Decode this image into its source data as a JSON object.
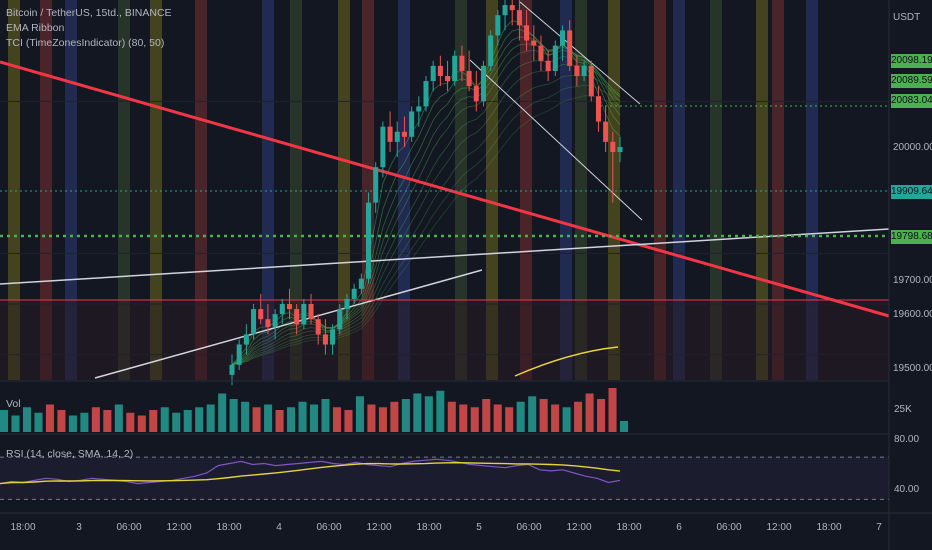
{
  "legend": {
    "symbol": "Bitcoin / TetherUS, 15td., BINANCE",
    "ema": "EMA Ribbon",
    "tci": "TCI (TimeZonesIndicator) (80, 50)"
  },
  "currency": "USDT",
  "volume_label": "Vol",
  "volume_max_label": "25K",
  "rsi_label": "RSI (14, close, SMA, 14, 2)",
  "price_tags": [
    {
      "value": "20098.19",
      "color": "#4caf50"
    },
    {
      "value": "20089.59",
      "color": "#4caf50"
    },
    {
      "value": "20083.04",
      "color": "#4caf50"
    },
    {
      "value": "19909.64",
      "color": "#26a69a"
    },
    {
      "value": "19798.68",
      "color": "#4caf50"
    }
  ],
  "price_axis": [
    "20000.00",
    "19700.00",
    "19600.00",
    "19500.00"
  ],
  "rsi_axis": [
    "80.00",
    "40.00"
  ],
  "time_axis": [
    "18:00",
    "3",
    "06:00",
    "12:00",
    "18:00",
    "4",
    "06:00",
    "12:00",
    "18:00",
    "5",
    "06:00",
    "12:00",
    "18:00",
    "6",
    "06:00",
    "12:00",
    "18:00",
    "7"
  ],
  "colors": {
    "up": "#26a69a",
    "down": "#ef5350",
    "trendline": "#f23645",
    "support": "#f23645",
    "ribbon": "#4caf50",
    "rsi": "#7e57c2",
    "rsi_ma": "#e6d33a"
  },
  "chart_data": {
    "type": "candlestick",
    "series_name": "Bitcoin / TetherUS",
    "price_range": [
      19450,
      20200
    ],
    "candles_note": "approximate 15-minute OHLC candles read from the visible chart",
    "candles": [
      [
        19460,
        19500,
        19440,
        19480
      ],
      [
        19480,
        19530,
        19470,
        19520
      ],
      [
        19520,
        19560,
        19500,
        19540
      ],
      [
        19540,
        19600,
        19530,
        19590
      ],
      [
        19590,
        19620,
        19560,
        19570
      ],
      [
        19570,
        19600,
        19540,
        19555
      ],
      [
        19555,
        19590,
        19530,
        19580
      ],
      [
        19580,
        19610,
        19560,
        19600
      ],
      [
        19600,
        19630,
        19570,
        19590
      ],
      [
        19590,
        19600,
        19540,
        19560
      ],
      [
        19560,
        19610,
        19550,
        19600
      ],
      [
        19600,
        19620,
        19560,
        19570
      ],
      [
        19570,
        19580,
        19520,
        19540
      ],
      [
        19540,
        19570,
        19500,
        19520
      ],
      [
        19520,
        19560,
        19500,
        19550
      ],
      [
        19550,
        19600,
        19540,
        19590
      ],
      [
        19590,
        19620,
        19570,
        19610
      ],
      [
        19610,
        19640,
        19600,
        19630
      ],
      [
        19630,
        19660,
        19620,
        19650
      ],
      [
        19650,
        19820,
        19640,
        19800
      ],
      [
        19800,
        19880,
        19780,
        19870
      ],
      [
        19870,
        19960,
        19850,
        19950
      ],
      [
        19950,
        19980,
        19900,
        19920
      ],
      [
        19920,
        19960,
        19890,
        19940
      ],
      [
        19940,
        19970,
        19910,
        19930
      ],
      [
        19930,
        19990,
        19920,
        19980
      ],
      [
        19980,
        20010,
        19950,
        19990
      ],
      [
        19990,
        20050,
        19980,
        20040
      ],
      [
        20040,
        20080,
        20020,
        20070
      ],
      [
        20070,
        20090,
        20030,
        20050
      ],
      [
        20050,
        20080,
        20020,
        20040
      ],
      [
        20040,
        20100,
        20030,
        20090
      ],
      [
        20090,
        20110,
        20040,
        20060
      ],
      [
        20060,
        20100,
        20020,
        20030
      ],
      [
        20030,
        20060,
        19980,
        20000
      ],
      [
        20000,
        20080,
        19990,
        20070
      ],
      [
        20070,
        20140,
        20060,
        20130
      ],
      [
        20130,
        20180,
        20110,
        20170
      ],
      [
        20170,
        20200,
        20140,
        20190
      ],
      [
        20190,
        20210,
        20150,
        20180
      ],
      [
        20180,
        20200,
        20120,
        20150
      ],
      [
        20150,
        20180,
        20100,
        20120
      ],
      [
        20120,
        20150,
        20080,
        20110
      ],
      [
        20110,
        20130,
        20060,
        20080
      ],
      [
        20080,
        20100,
        20040,
        20060
      ],
      [
        20060,
        20120,
        20050,
        20110
      ],
      [
        20110,
        20150,
        20080,
        20140
      ],
      [
        20140,
        20160,
        20060,
        20070
      ],
      [
        20070,
        20090,
        20030,
        20050
      ],
      [
        20050,
        20080,
        20040,
        20070
      ],
      [
        20070,
        20080,
        20000,
        20010
      ],
      [
        20010,
        20030,
        19940,
        19960
      ],
      [
        19960,
        19990,
        19900,
        19920
      ],
      [
        19920,
        19940,
        19800,
        19900
      ],
      [
        19900,
        19930,
        19880,
        19910
      ]
    ],
    "volume": [
      8,
      6,
      9,
      7,
      10,
      8,
      6,
      7,
      9,
      8,
      10,
      7,
      6,
      8,
      9,
      7,
      8,
      9,
      10,
      14,
      12,
      11,
      9,
      10,
      8,
      9,
      11,
      10,
      12,
      9,
      8,
      13,
      10,
      9,
      11,
      12,
      14,
      13,
      15,
      11,
      10,
      9,
      12,
      10,
      9,
      11,
      13,
      12,
      10,
      9,
      11,
      14,
      12,
      16,
      4
    ],
    "rsi": [
      45,
      47,
      46,
      48,
      50,
      49,
      47,
      48,
      50,
      49,
      48,
      47,
      45,
      46,
      47,
      48,
      50,
      52,
      55,
      62,
      64,
      66,
      63,
      64,
      62,
      63,
      64,
      65,
      66,
      64,
      63,
      65,
      63,
      62,
      61,
      64,
      66,
      67,
      68,
      67,
      65,
      63,
      62,
      61,
      60,
      62,
      63,
      58,
      57,
      58,
      55,
      52,
      50,
      46,
      48
    ],
    "rsi_range": [
      20,
      90
    ],
    "rsi_levels": [
      70,
      30
    ]
  }
}
